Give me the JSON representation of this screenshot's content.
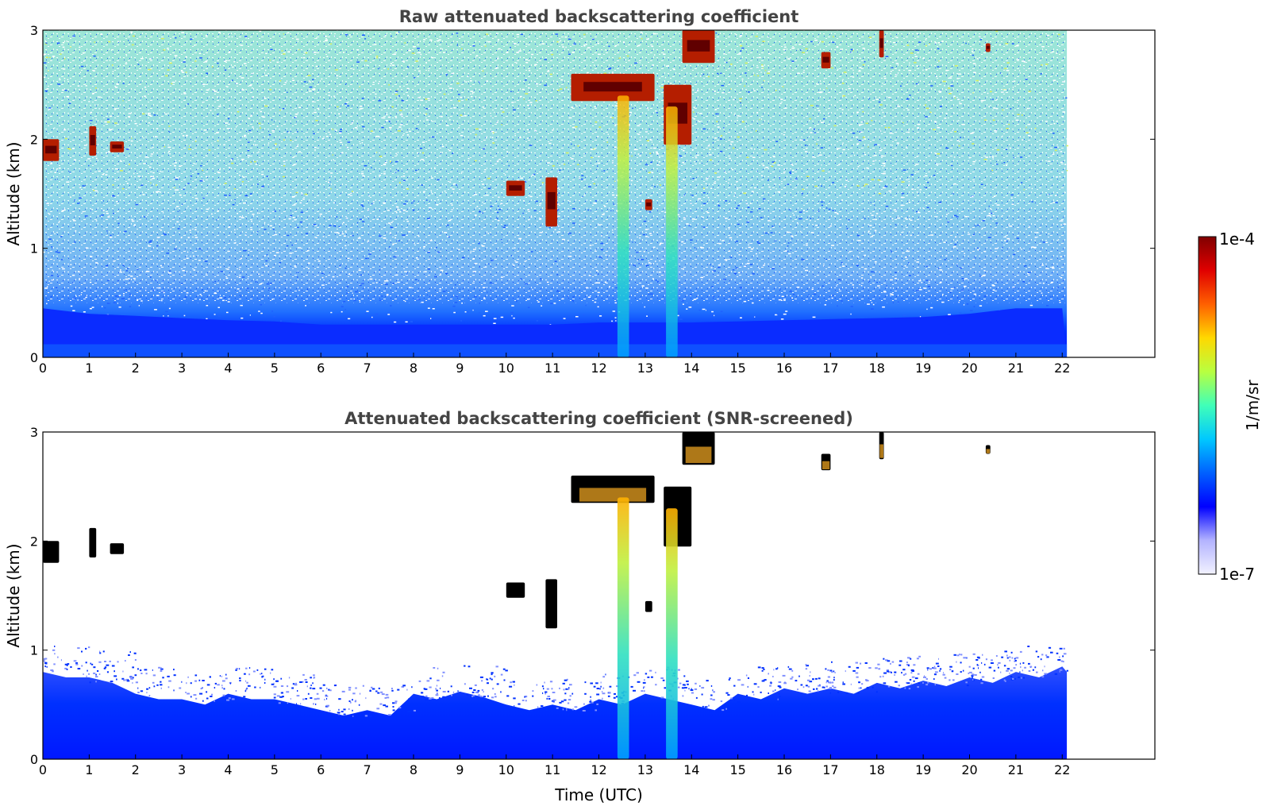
{
  "chart_data": [
    {
      "type": "heatmap",
      "title": "Raw attenuated backscattering coefficient",
      "xlabel": "",
      "ylabel": "Altitude (km)",
      "xlim": [
        0,
        24
      ],
      "ylim": [
        0,
        3
      ],
      "xticks": [
        0,
        1,
        2,
        3,
        4,
        5,
        6,
        7,
        8,
        9,
        10,
        11,
        12,
        13,
        14,
        15,
        16,
        17,
        18,
        19,
        20,
        21,
        22
      ],
      "yticks": [
        0,
        1,
        2,
        3
      ],
      "data_extent_hours": [
        0,
        22.1
      ],
      "boundary_layer_top_km": [
        0.45,
        0.4,
        0.38,
        0.36,
        0.34,
        0.33,
        0.3,
        0.3,
        0.3,
        0.3,
        0.3,
        0.3,
        0.32,
        0.32,
        0.32,
        0.33,
        0.34,
        0.35,
        0.36,
        0.37,
        0.4,
        0.45,
        0.45
      ],
      "features": [
        {
          "label": "cloud",
          "t_start": 0.0,
          "t_end": 0.35,
          "alt_min": 1.8,
          "alt_max": 2.0
        },
        {
          "label": "cloud",
          "t_start": 1.0,
          "t_end": 1.15,
          "alt_min": 1.85,
          "alt_max": 2.12
        },
        {
          "label": "cloud",
          "t_start": 1.45,
          "t_end": 1.75,
          "alt_min": 1.88,
          "alt_max": 1.98
        },
        {
          "label": "cloud",
          "t_start": 10.0,
          "t_end": 10.4,
          "alt_min": 1.48,
          "alt_max": 1.62
        },
        {
          "label": "cloud",
          "t_start": 10.85,
          "t_end": 11.1,
          "alt_min": 1.2,
          "alt_max": 1.65
        },
        {
          "label": "cloud",
          "t_start": 11.4,
          "t_end": 13.2,
          "alt_min": 2.35,
          "alt_max": 2.6
        },
        {
          "label": "cloud",
          "t_start": 13.0,
          "t_end": 13.15,
          "alt_min": 1.35,
          "alt_max": 1.45
        },
        {
          "label": "cloud",
          "t_start": 13.4,
          "t_end": 14.0,
          "alt_min": 1.95,
          "alt_max": 2.5
        },
        {
          "label": "cloud",
          "t_start": 13.8,
          "t_end": 14.5,
          "alt_min": 2.7,
          "alt_max": 3.0
        },
        {
          "label": "cloud",
          "t_start": 16.8,
          "t_end": 17.0,
          "alt_min": 2.65,
          "alt_max": 2.8
        },
        {
          "label": "cloud",
          "t_start": 18.05,
          "t_end": 18.15,
          "alt_min": 2.75,
          "alt_max": 3.0
        },
        {
          "label": "cloud",
          "t_start": 20.35,
          "t_end": 20.45,
          "alt_min": 2.8,
          "alt_max": 2.88
        },
        {
          "label": "plume",
          "t_start": 12.4,
          "t_end": 12.65,
          "alt_min": 0.0,
          "alt_max": 2.4
        },
        {
          "label": "plume",
          "t_start": 13.45,
          "t_end": 13.7,
          "alt_min": 0.0,
          "alt_max": 2.3
        }
      ]
    },
    {
      "type": "heatmap",
      "title": "Attenuated backscattering coefficient (SNR-screened)",
      "xlabel": "Time (UTC)",
      "ylabel": "Altitude (km)",
      "xlim": [
        0,
        24
      ],
      "ylim": [
        0,
        3
      ],
      "xticks": [
        0,
        1,
        2,
        3,
        4,
        5,
        6,
        7,
        8,
        9,
        10,
        11,
        12,
        13,
        14,
        15,
        16,
        17,
        18,
        19,
        20,
        21,
        22
      ],
      "yticks": [
        0,
        1,
        2,
        3
      ],
      "data_extent_hours": [
        0,
        22.1
      ],
      "screened_top_km": [
        0.8,
        0.75,
        0.6,
        0.55,
        0.6,
        0.55,
        0.45,
        0.45,
        0.6,
        0.62,
        0.5,
        0.5,
        0.55,
        0.6,
        0.5,
        0.6,
        0.65,
        0.65,
        0.7,
        0.72,
        0.75,
        0.8,
        0.85
      ],
      "features": [
        {
          "label": "cloud",
          "t_start": 0.0,
          "t_end": 0.35,
          "alt_min": 1.8,
          "alt_max": 2.0
        },
        {
          "label": "cloud",
          "t_start": 1.0,
          "t_end": 1.15,
          "alt_min": 1.85,
          "alt_max": 2.12
        },
        {
          "label": "cloud",
          "t_start": 1.45,
          "t_end": 1.75,
          "alt_min": 1.88,
          "alt_max": 1.98
        },
        {
          "label": "cloud",
          "t_start": 10.0,
          "t_end": 10.4,
          "alt_min": 1.48,
          "alt_max": 1.62
        },
        {
          "label": "cloud",
          "t_start": 10.85,
          "t_end": 11.1,
          "alt_min": 1.2,
          "alt_max": 1.65
        },
        {
          "label": "cloud",
          "t_start": 11.4,
          "t_end": 13.2,
          "alt_min": 2.35,
          "alt_max": 2.6
        },
        {
          "label": "cloud",
          "t_start": 13.0,
          "t_end": 13.15,
          "alt_min": 1.35,
          "alt_max": 1.45
        },
        {
          "label": "cloud",
          "t_start": 13.4,
          "t_end": 14.0,
          "alt_min": 1.95,
          "alt_max": 2.5
        },
        {
          "label": "cloud",
          "t_start": 13.8,
          "t_end": 14.5,
          "alt_min": 2.7,
          "alt_max": 3.0
        },
        {
          "label": "cloud",
          "t_start": 16.8,
          "t_end": 17.0,
          "alt_min": 2.65,
          "alt_max": 2.8
        },
        {
          "label": "cloud",
          "t_start": 18.05,
          "t_end": 18.15,
          "alt_min": 2.75,
          "alt_max": 3.0
        },
        {
          "label": "cloud",
          "t_start": 20.35,
          "t_end": 20.45,
          "alt_min": 2.8,
          "alt_max": 2.88
        },
        {
          "label": "plume",
          "t_start": 12.4,
          "t_end": 12.65,
          "alt_min": 0.0,
          "alt_max": 2.4
        },
        {
          "label": "plume",
          "t_start": 13.45,
          "t_end": 13.7,
          "alt_min": 0.0,
          "alt_max": 2.3
        }
      ]
    }
  ],
  "colorbar": {
    "label": "1/m/sr",
    "min_label": "1e-7",
    "max_label": "1e-4",
    "scale": "log",
    "range": [
      1e-07,
      0.0001
    ],
    "colormap": [
      "#f2f2ff",
      "#b3b3ff",
      "#0000ff",
      "#0060ff",
      "#00c8ff",
      "#40ffb8",
      "#b8ff40",
      "#ffd800",
      "#ff6000",
      "#e00000",
      "#800000"
    ]
  },
  "colors": {
    "cloud": "#b41e00",
    "cloud_core": "#600000",
    "cloud_screened": "#000000",
    "plume_low": "#00b0f0",
    "plume_high": "#ffd000",
    "background_low": "#0020ff",
    "background_mid": "#30a0e0",
    "background_high": "#a0e070"
  }
}
